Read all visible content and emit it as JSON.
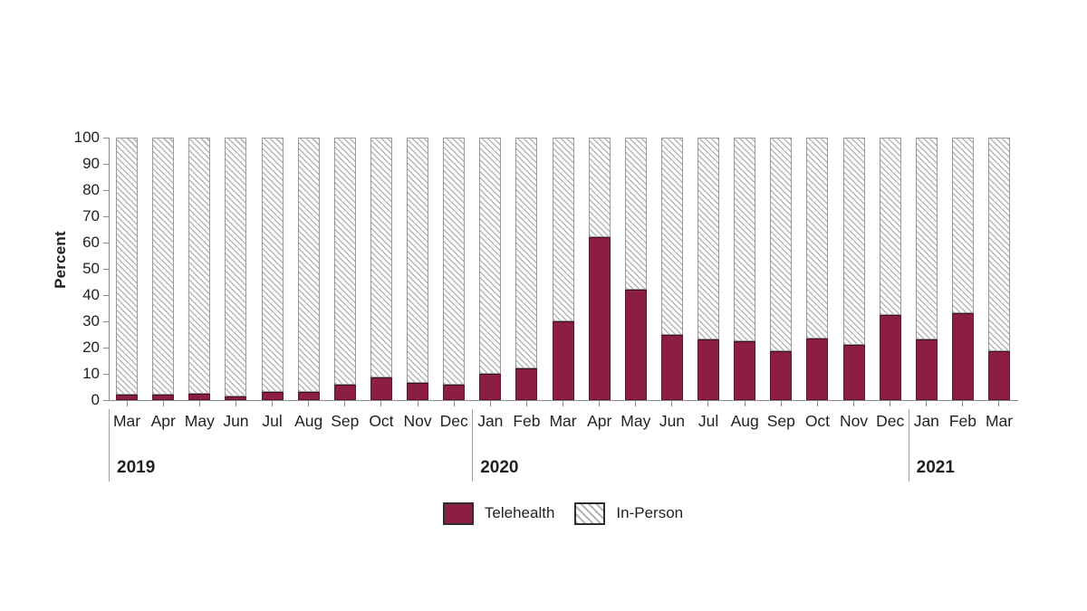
{
  "chart_data": {
    "type": "bar",
    "stacked": true,
    "title": "",
    "xlabel": "",
    "ylabel": "Percent",
    "ylim": [
      0,
      100
    ],
    "grid": false,
    "legend_position": "bottom",
    "y_ticks": [
      0,
      10,
      20,
      30,
      40,
      50,
      60,
      70,
      80,
      90,
      100
    ],
    "categories": [
      "Mar",
      "Apr",
      "May",
      "Jun",
      "Jul",
      "Aug",
      "Sep",
      "Oct",
      "Nov",
      "Dec",
      "Jan",
      "Feb",
      "Mar",
      "Apr",
      "May",
      "Jun",
      "Jul",
      "Aug",
      "Sep",
      "Oct",
      "Nov",
      "Dec",
      "Jan",
      "Feb",
      "Mar"
    ],
    "year_groups": [
      {
        "label": "2019",
        "months": 10
      },
      {
        "label": "2020",
        "months": 12
      },
      {
        "label": "2021",
        "months": 3
      }
    ],
    "series": [
      {
        "name": "Telehealth",
        "color": "#8c1e45",
        "values": [
          2,
          2,
          2.5,
          1.5,
          3,
          3,
          6,
          8.5,
          6.5,
          6,
          10,
          12,
          30,
          62,
          42,
          25,
          23,
          22.5,
          18.5,
          23.5,
          21,
          32.5,
          23,
          33,
          18.5
        ]
      },
      {
        "name": "In-Person",
        "color": "#b5b5b5",
        "pattern": "diagonal-hatch",
        "values": [
          98,
          98,
          97.5,
          98.5,
          97,
          97,
          94,
          91.5,
          93.5,
          94,
          90,
          88,
          70,
          38,
          58,
          75,
          77,
          77.5,
          81.5,
          76.5,
          79,
          67.5,
          77,
          67,
          81.5
        ]
      }
    ]
  }
}
